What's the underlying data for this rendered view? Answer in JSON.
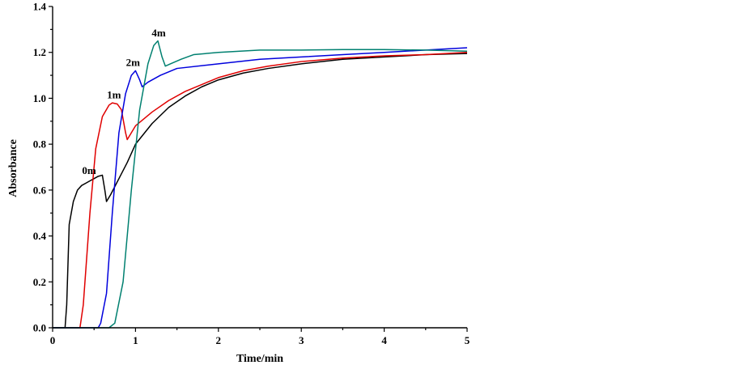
{
  "chart_data": {
    "type": "line",
    "xlabel": "Time/min",
    "ylabel": "Absorbance",
    "xlim": [
      0,
      5
    ],
    "ylim": [
      0,
      1.4
    ],
    "xticks": [
      0,
      1,
      2,
      3,
      4,
      5
    ],
    "yticks": [
      "0.0",
      "0.2",
      "0.4",
      "0.6",
      "0.8",
      "1.0",
      "1.2",
      "1.4"
    ],
    "grid": false,
    "series": [
      {
        "name": "0m",
        "color": "#000000",
        "points": [
          [
            0,
            0
          ],
          [
            0.15,
            0
          ],
          [
            0.17,
            0.1
          ],
          [
            0.2,
            0.45
          ],
          [
            0.25,
            0.55
          ],
          [
            0.3,
            0.6
          ],
          [
            0.35,
            0.62
          ],
          [
            0.4,
            0.63
          ],
          [
            0.45,
            0.64
          ],
          [
            0.5,
            0.65
          ],
          [
            0.55,
            0.66
          ],
          [
            0.6,
            0.665
          ],
          [
            0.63,
            0.6
          ],
          [
            0.65,
            0.55
          ],
          [
            0.7,
            0.58
          ],
          [
            0.8,
            0.65
          ],
          [
            0.9,
            0.72
          ],
          [
            1.0,
            0.8
          ],
          [
            1.2,
            0.89
          ],
          [
            1.4,
            0.96
          ],
          [
            1.6,
            1.01
          ],
          [
            1.8,
            1.05
          ],
          [
            2.0,
            1.08
          ],
          [
            2.3,
            1.11
          ],
          [
            2.6,
            1.13
          ],
          [
            3.0,
            1.15
          ],
          [
            3.5,
            1.17
          ],
          [
            4.0,
            1.18
          ],
          [
            4.5,
            1.19
          ],
          [
            5.0,
            1.195
          ]
        ],
        "label": "0m"
      },
      {
        "name": "1m",
        "color": "#e00000",
        "points": [
          [
            0,
            0
          ],
          [
            0.33,
            0
          ],
          [
            0.37,
            0.1
          ],
          [
            0.45,
            0.5
          ],
          [
            0.52,
            0.78
          ],
          [
            0.6,
            0.92
          ],
          [
            0.68,
            0.97
          ],
          [
            0.72,
            0.98
          ],
          [
            0.78,
            0.975
          ],
          [
            0.83,
            0.95
          ],
          [
            0.88,
            0.85
          ],
          [
            0.9,
            0.82
          ],
          [
            0.95,
            0.85
          ],
          [
            1.0,
            0.88
          ],
          [
            1.2,
            0.94
          ],
          [
            1.4,
            0.99
          ],
          [
            1.6,
            1.03
          ],
          [
            1.8,
            1.06
          ],
          [
            2.0,
            1.09
          ],
          [
            2.3,
            1.12
          ],
          [
            2.6,
            1.14
          ],
          [
            3.0,
            1.16
          ],
          [
            3.5,
            1.175
          ],
          [
            4.0,
            1.185
          ],
          [
            4.5,
            1.19
          ],
          [
            5.0,
            1.2
          ]
        ],
        "label": "1m"
      },
      {
        "name": "2m",
        "color": "#0000dd",
        "points": [
          [
            0,
            0
          ],
          [
            0.55,
            0
          ],
          [
            0.58,
            0.02
          ],
          [
            0.65,
            0.15
          ],
          [
            0.72,
            0.5
          ],
          [
            0.8,
            0.85
          ],
          [
            0.88,
            1.02
          ],
          [
            0.95,
            1.1
          ],
          [
            1.0,
            1.12
          ],
          [
            1.05,
            1.08
          ],
          [
            1.08,
            1.05
          ],
          [
            1.15,
            1.07
          ],
          [
            1.3,
            1.1
          ],
          [
            1.5,
            1.13
          ],
          [
            2.0,
            1.15
          ],
          [
            2.5,
            1.17
          ],
          [
            3.0,
            1.18
          ],
          [
            3.5,
            1.19
          ],
          [
            4.0,
            1.2
          ],
          [
            4.5,
            1.21
          ],
          [
            5.0,
            1.22
          ]
        ],
        "label": "2m"
      },
      {
        "name": "4m",
        "color": "#008070",
        "points": [
          [
            0,
            0
          ],
          [
            0.68,
            0
          ],
          [
            0.75,
            0.02
          ],
          [
            0.85,
            0.2
          ],
          [
            0.95,
            0.6
          ],
          [
            1.05,
            0.95
          ],
          [
            1.15,
            1.15
          ],
          [
            1.22,
            1.23
          ],
          [
            1.27,
            1.25
          ],
          [
            1.32,
            1.18
          ],
          [
            1.36,
            1.14
          ],
          [
            1.42,
            1.15
          ],
          [
            1.55,
            1.17
          ],
          [
            1.7,
            1.19
          ],
          [
            2.0,
            1.2
          ],
          [
            2.5,
            1.21
          ],
          [
            3.0,
            1.21
          ],
          [
            3.5,
            1.212
          ],
          [
            4.0,
            1.212
          ],
          [
            4.5,
            1.21
          ],
          [
            5.0,
            1.205
          ]
        ],
        "label": "4m"
      }
    ],
    "annotations": [
      {
        "text": "0m",
        "x": 0.44,
        "y": 0.67
      },
      {
        "text": "1m",
        "x": 0.74,
        "y": 1.0
      },
      {
        "text": "2m",
        "x": 0.97,
        "y": 1.14
      },
      {
        "text": "4m",
        "x": 1.28,
        "y": 1.27
      }
    ]
  }
}
